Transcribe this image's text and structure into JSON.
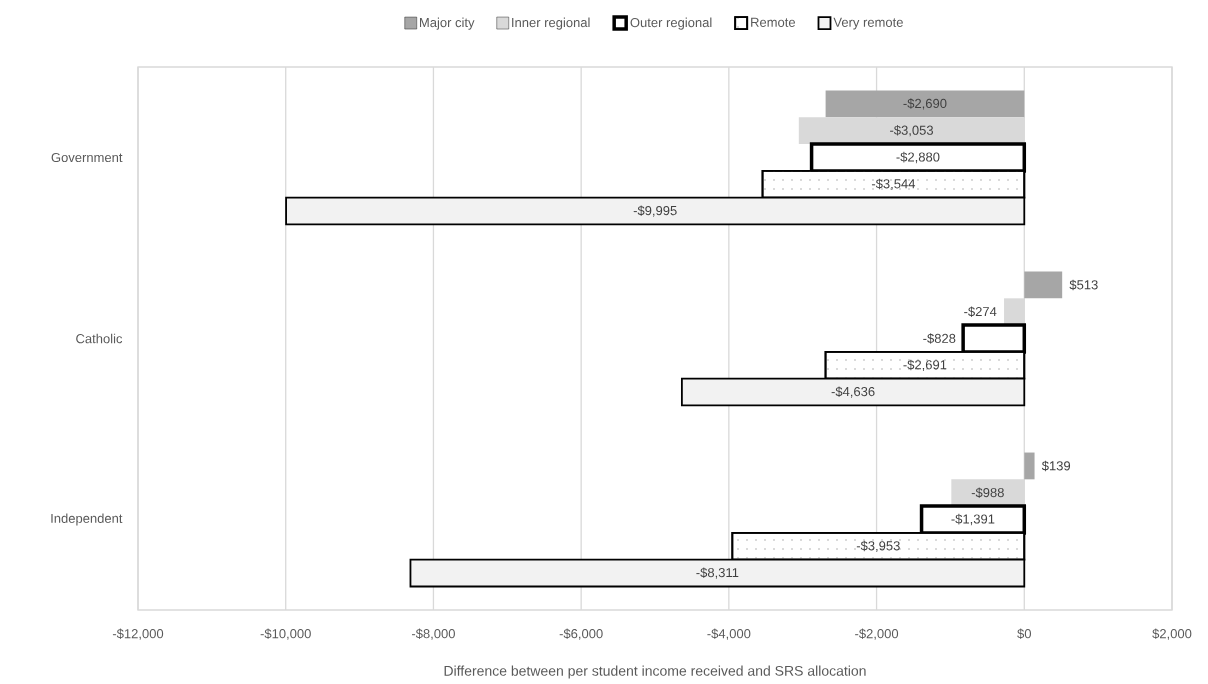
{
  "chart_data": {
    "type": "bar",
    "orientation": "horizontal",
    "xlabel": "Difference between per student income received and SRS allocation",
    "categories": [
      "Government",
      "Catholic",
      "Independent"
    ],
    "series": [
      {
        "name": "Major city",
        "color": "#a6a6a6",
        "values": [
          -2690,
          513,
          139
        ],
        "value_labels": [
          "-$2,690",
          "$513",
          "$139"
        ]
      },
      {
        "name": "Inner regional",
        "color": "#d9d9d9",
        "values": [
          -3053,
          -274,
          -988
        ],
        "value_labels": [
          "-$3,053",
          "-$274",
          "-$988"
        ]
      },
      {
        "name": "Outer regional",
        "color": "#ffffff",
        "values": [
          -2880,
          -828,
          -1391
        ],
        "value_labels": [
          "-$2,880",
          "-$828",
          "-$1,391"
        ]
      },
      {
        "name": "Remote",
        "color": "#ffffff",
        "values": [
          -3544,
          -2691,
          -3953
        ],
        "value_labels": [
          "-$3,544",
          "-$2,691",
          "-$3,953"
        ]
      },
      {
        "name": "Very remote",
        "color": "#f2f2f2",
        "values": [
          -9995,
          -4636,
          -8311
        ],
        "value_labels": [
          "-$9,995",
          "-$4,636",
          "-$8,311"
        ]
      }
    ],
    "xlim": [
      -12000,
      2000
    ],
    "xticks": [
      {
        "value": -12000,
        "label": "-$12,000"
      },
      {
        "value": -10000,
        "label": "-$10,000"
      },
      {
        "value": -8000,
        "label": "-$8,000"
      },
      {
        "value": -6000,
        "label": "-$6,000"
      },
      {
        "value": -4000,
        "label": "-$4,000"
      },
      {
        "value": -2000,
        "label": "-$2,000"
      },
      {
        "value": 0,
        "label": "$0"
      },
      {
        "value": 2000,
        "label": "$2,000"
      }
    ],
    "grid": "x",
    "legend": "top"
  }
}
